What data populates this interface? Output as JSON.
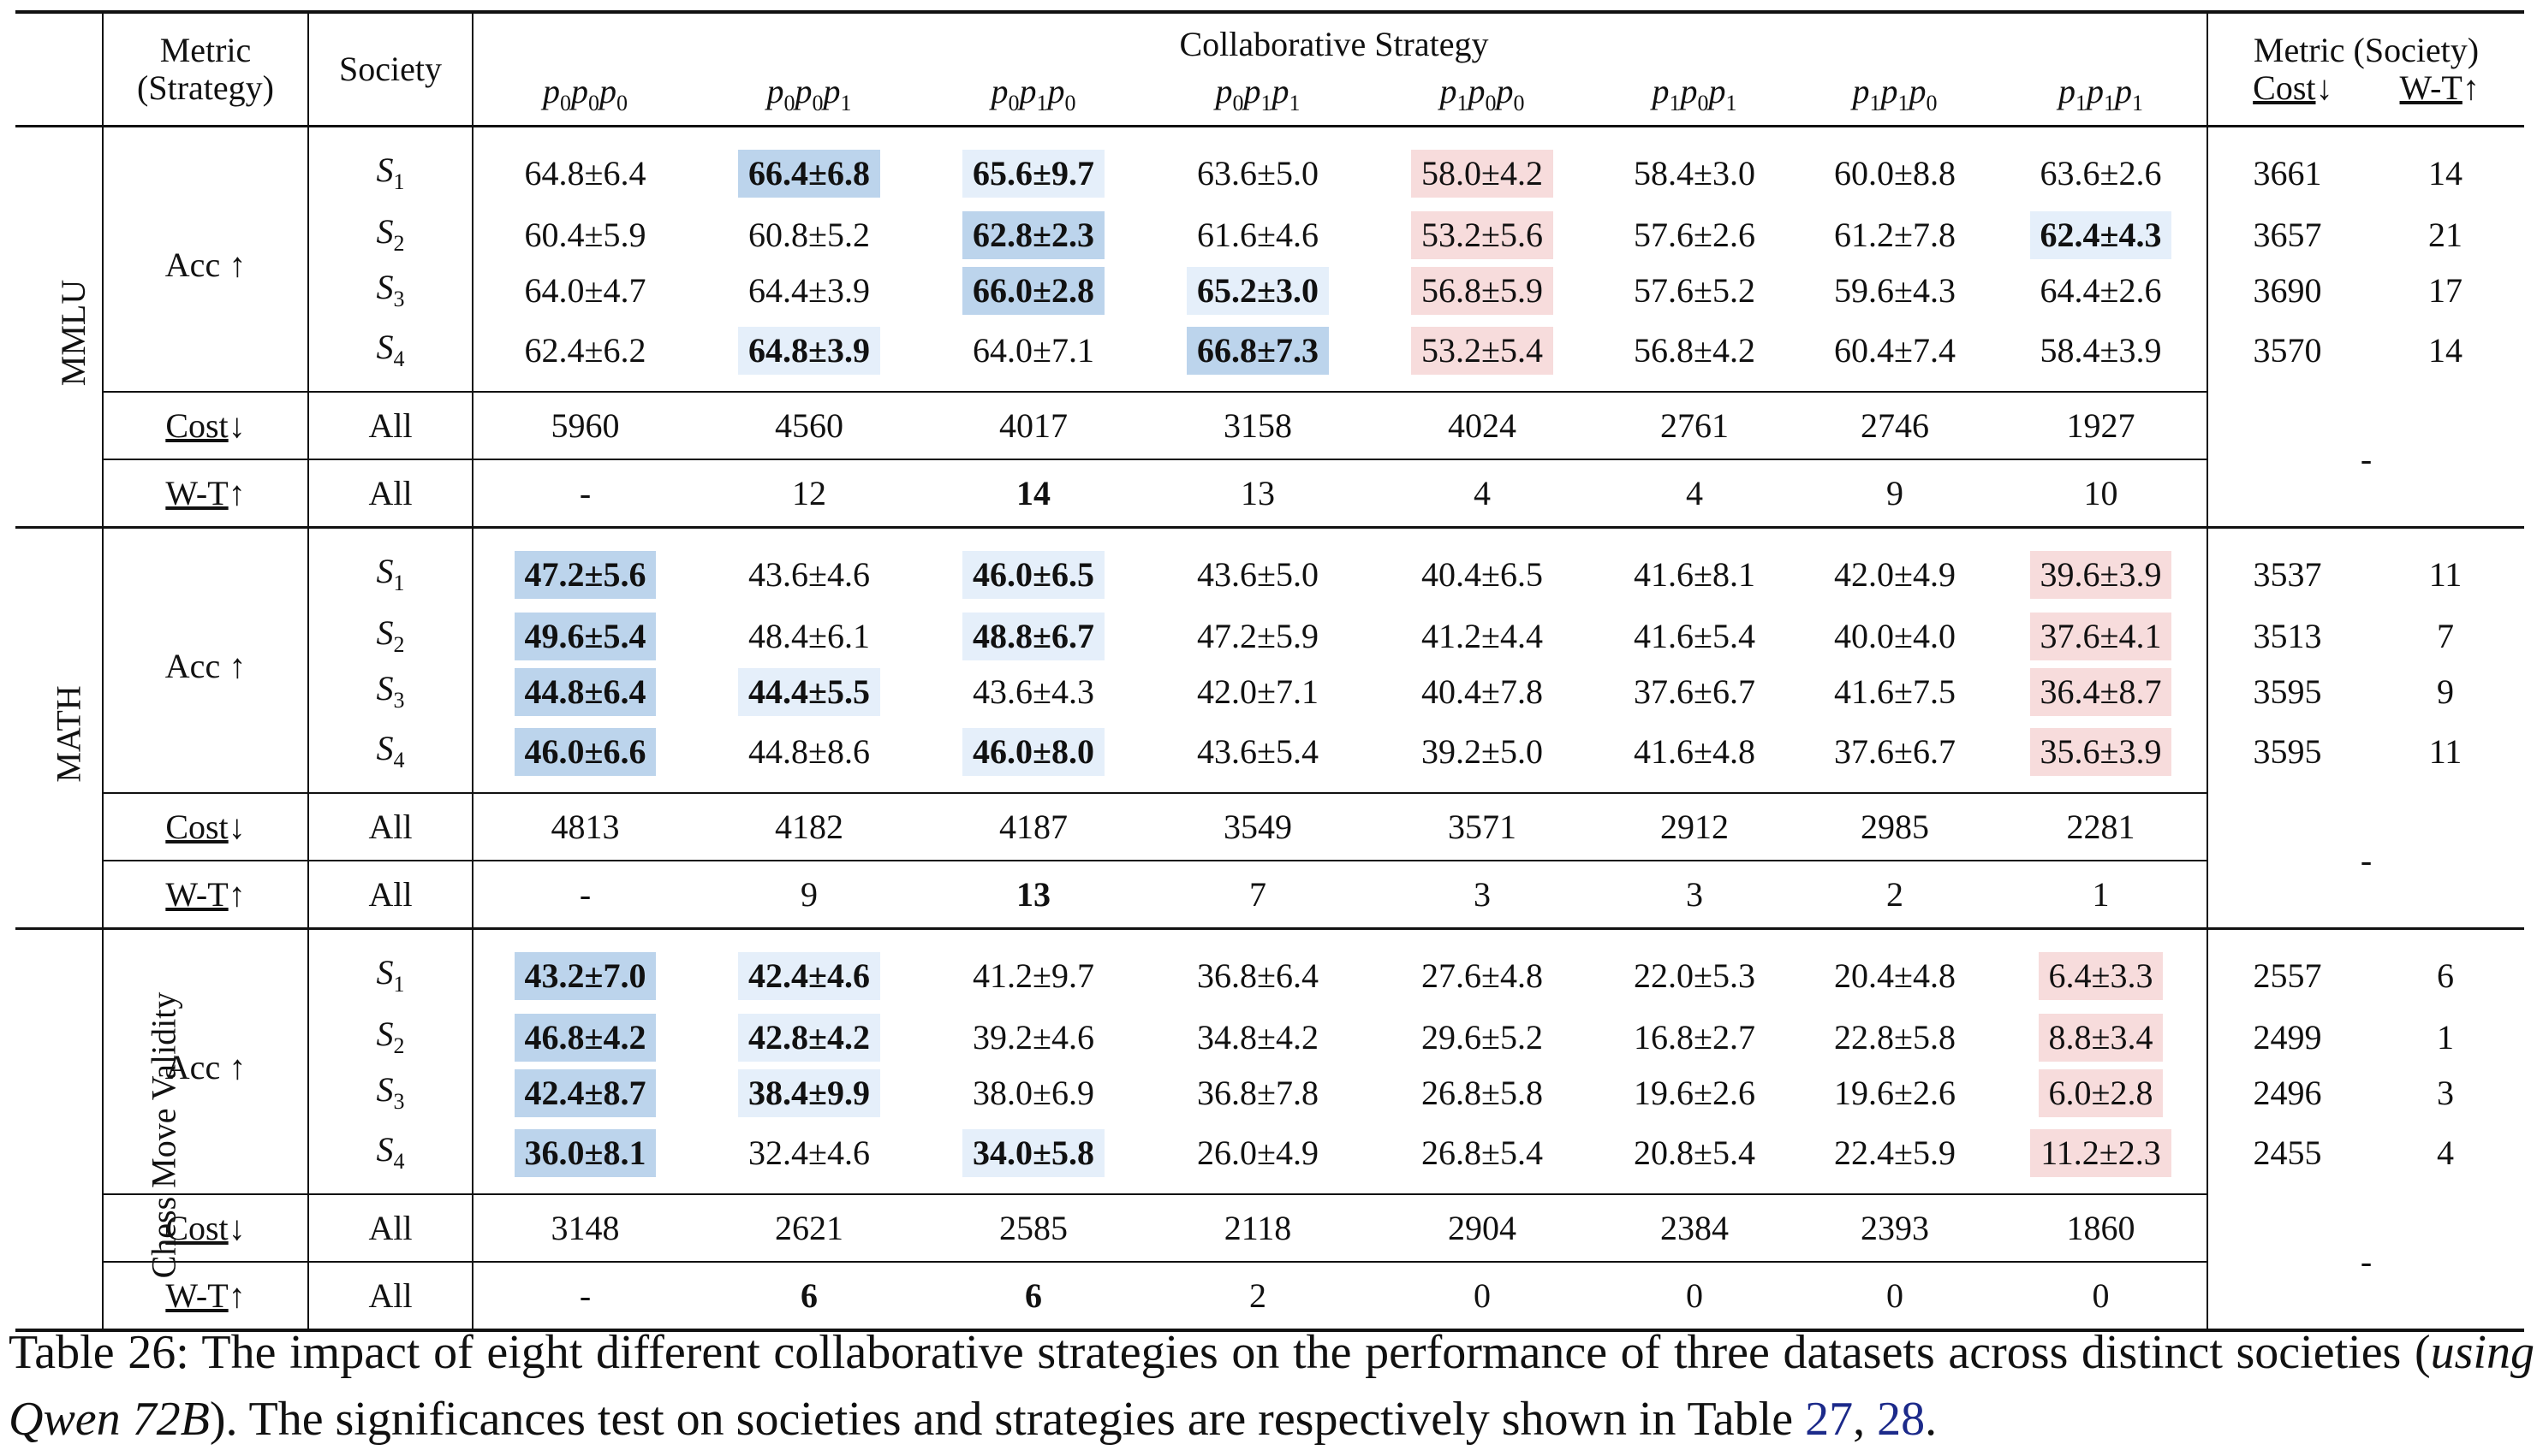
{
  "header": {
    "metric_strategy": [
      "Metric",
      "(Strategy)"
    ],
    "society": "Society",
    "collab_strategy": "Collaborative Strategy",
    "metric_society": "Metric (Society)",
    "cost_label": "Cost",
    "wt_label": "W-T",
    "down_arrow": "↓",
    "up_arrow": "↑",
    "strategies": [
      [
        "p",
        "0",
        "p",
        "0",
        "p",
        "0"
      ],
      [
        "p",
        "0",
        "p",
        "0",
        "p",
        "1"
      ],
      [
        "p",
        "0",
        "p",
        "1",
        "p",
        "0"
      ],
      [
        "p",
        "0",
        "p",
        "1",
        "p",
        "1"
      ],
      [
        "p",
        "1",
        "p",
        "0",
        "p",
        "0"
      ],
      [
        "p",
        "1",
        "p",
        "0",
        "p",
        "1"
      ],
      [
        "p",
        "1",
        "p",
        "1",
        "p",
        "0"
      ],
      [
        "p",
        "1",
        "p",
        "1",
        "p",
        "1"
      ]
    ]
  },
  "labels": {
    "acc": "Acc ↑",
    "cost": "Cost",
    "wt": "W-T",
    "all": "All",
    "dash": "-"
  },
  "datasets": [
    {
      "name": "MMLU",
      "rows": [
        {
          "s": "S",
          "n": "1",
          "cells": [
            {
              "v": "64.8±6.4"
            },
            {
              "v": "66.4±6.8",
              "b": true,
              "h": "dark"
            },
            {
              "v": "65.6±9.7",
              "b": true,
              "h": "light"
            },
            {
              "v": "63.6±5.0"
            },
            {
              "v": "58.0±4.2",
              "h": "red"
            },
            {
              "v": "58.4±3.0"
            },
            {
              "v": "60.0±8.8"
            },
            {
              "v": "63.6±2.6"
            }
          ],
          "cost": "3661",
          "wt": "14"
        },
        {
          "s": "S",
          "n": "2",
          "cells": [
            {
              "v": "60.4±5.9"
            },
            {
              "v": "60.8±5.2"
            },
            {
              "v": "62.8±2.3",
              "b": true,
              "h": "dark"
            },
            {
              "v": "61.6±4.6"
            },
            {
              "v": "53.2±5.6",
              "h": "red"
            },
            {
              "v": "57.6±2.6"
            },
            {
              "v": "61.2±7.8"
            },
            {
              "v": "62.4±4.3",
              "b": true,
              "h": "light"
            }
          ],
          "cost": "3657",
          "wt": "21"
        },
        {
          "s": "S",
          "n": "3",
          "cells": [
            {
              "v": "64.0±4.7"
            },
            {
              "v": "64.4±3.9"
            },
            {
              "v": "66.0±2.8",
              "b": true,
              "h": "dark"
            },
            {
              "v": "65.2±3.0",
              "b": true,
              "h": "light"
            },
            {
              "v": "56.8±5.9",
              "h": "red"
            },
            {
              "v": "57.6±5.2"
            },
            {
              "v": "59.6±4.3"
            },
            {
              "v": "64.4±2.6"
            }
          ],
          "cost": "3690",
          "wt": "17"
        },
        {
          "s": "S",
          "n": "4",
          "cells": [
            {
              "v": "62.4±6.2"
            },
            {
              "v": "64.8±3.9",
              "b": true,
              "h": "light"
            },
            {
              "v": "64.0±7.1"
            },
            {
              "v": "66.8±7.3",
              "b": true,
              "h": "dark"
            },
            {
              "v": "53.2±5.4",
              "h": "red"
            },
            {
              "v": "56.8±4.2"
            },
            {
              "v": "60.4±7.4"
            },
            {
              "v": "58.4±3.9"
            }
          ],
          "cost": "3570",
          "wt": "14"
        }
      ],
      "cost_row": [
        "5960",
        "4560",
        "4017",
        "3158",
        "4024",
        "2761",
        "2746",
        "1927"
      ],
      "wt_row": [
        {
          "v": "-"
        },
        {
          "v": "12"
        },
        {
          "v": "14",
          "b": true
        },
        {
          "v": "13"
        },
        {
          "v": "4"
        },
        {
          "v": "4"
        },
        {
          "v": "9"
        },
        {
          "v": "10"
        }
      ]
    },
    {
      "name": "MATH",
      "rows": [
        {
          "s": "S",
          "n": "1",
          "cells": [
            {
              "v": "47.2±5.6",
              "b": true,
              "h": "dark"
            },
            {
              "v": "43.6±4.6"
            },
            {
              "v": "46.0±6.5",
              "b": true,
              "h": "light"
            },
            {
              "v": "43.6±5.0"
            },
            {
              "v": "40.4±6.5"
            },
            {
              "v": "41.6±8.1"
            },
            {
              "v": "42.0±4.9"
            },
            {
              "v": "39.6±3.9",
              "h": "red"
            }
          ],
          "cost": "3537",
          "wt": "11"
        },
        {
          "s": "S",
          "n": "2",
          "cells": [
            {
              "v": "49.6±5.4",
              "b": true,
              "h": "dark"
            },
            {
              "v": "48.4±6.1"
            },
            {
              "v": "48.8±6.7",
              "b": true,
              "h": "light"
            },
            {
              "v": "47.2±5.9"
            },
            {
              "v": "41.2±4.4"
            },
            {
              "v": "41.6±5.4"
            },
            {
              "v": "40.0±4.0"
            },
            {
              "v": "37.6±4.1",
              "h": "red"
            }
          ],
          "cost": "3513",
          "wt": "7"
        },
        {
          "s": "S",
          "n": "3",
          "cells": [
            {
              "v": "44.8±6.4",
              "b": true,
              "h": "dark"
            },
            {
              "v": "44.4±5.5",
              "b": true,
              "h": "light"
            },
            {
              "v": "43.6±4.3"
            },
            {
              "v": "42.0±7.1"
            },
            {
              "v": "40.4±7.8"
            },
            {
              "v": "37.6±6.7"
            },
            {
              "v": "41.6±7.5"
            },
            {
              "v": "36.4±8.7",
              "h": "red"
            }
          ],
          "cost": "3595",
          "wt": "9"
        },
        {
          "s": "S",
          "n": "4",
          "cells": [
            {
              "v": "46.0±6.6",
              "b": true,
              "h": "dark"
            },
            {
              "v": "44.8±8.6"
            },
            {
              "v": "46.0±8.0",
              "b": true,
              "h": "light"
            },
            {
              "v": "43.6±5.4"
            },
            {
              "v": "39.2±5.0"
            },
            {
              "v": "41.6±4.8"
            },
            {
              "v": "37.6±6.7"
            },
            {
              "v": "35.6±3.9",
              "h": "red"
            }
          ],
          "cost": "3595",
          "wt": "11"
        }
      ],
      "cost_row": [
        "4813",
        "4182",
        "4187",
        "3549",
        "3571",
        "2912",
        "2985",
        "2281"
      ],
      "wt_row": [
        {
          "v": "-"
        },
        {
          "v": "9"
        },
        {
          "v": "13",
          "b": true
        },
        {
          "v": "7"
        },
        {
          "v": "3"
        },
        {
          "v": "3"
        },
        {
          "v": "2"
        },
        {
          "v": "1"
        }
      ]
    },
    {
      "name": "Chess Move Validity",
      "rows": [
        {
          "s": "S",
          "n": "1",
          "cells": [
            {
              "v": "43.2±7.0",
              "b": true,
              "h": "dark"
            },
            {
              "v": "42.4±4.6",
              "b": true,
              "h": "light"
            },
            {
              "v": "41.2±9.7"
            },
            {
              "v": "36.8±6.4"
            },
            {
              "v": "27.6±4.8"
            },
            {
              "v": "22.0±5.3"
            },
            {
              "v": "20.4±4.8"
            },
            {
              "v": "6.4±3.3",
              "h": "red"
            }
          ],
          "cost": "2557",
          "wt": "6"
        },
        {
          "s": "S",
          "n": "2",
          "cells": [
            {
              "v": "46.8±4.2",
              "b": true,
              "h": "dark"
            },
            {
              "v": "42.8±4.2",
              "b": true,
              "h": "light"
            },
            {
              "v": "39.2±4.6"
            },
            {
              "v": "34.8±4.2"
            },
            {
              "v": "29.6±5.2"
            },
            {
              "v": "16.8±2.7"
            },
            {
              "v": "22.8±5.8"
            },
            {
              "v": "8.8±3.4",
              "h": "red"
            }
          ],
          "cost": "2499",
          "wt": "1"
        },
        {
          "s": "S",
          "n": "3",
          "cells": [
            {
              "v": "42.4±8.7",
              "b": true,
              "h": "dark"
            },
            {
              "v": "38.4±9.9",
              "b": true,
              "h": "light"
            },
            {
              "v": "38.0±6.9"
            },
            {
              "v": "36.8±7.8"
            },
            {
              "v": "26.8±5.8"
            },
            {
              "v": "19.6±2.6"
            },
            {
              "v": "19.6±2.6"
            },
            {
              "v": "6.0±2.8",
              "h": "red"
            }
          ],
          "cost": "2496",
          "wt": "3"
        },
        {
          "s": "S",
          "n": "4",
          "cells": [
            {
              "v": "36.0±8.1",
              "b": true,
              "h": "dark"
            },
            {
              "v": "32.4±4.6"
            },
            {
              "v": "34.0±5.8",
              "b": true,
              "h": "light"
            },
            {
              "v": "26.0±4.9"
            },
            {
              "v": "26.8±5.4"
            },
            {
              "v": "20.8±5.4"
            },
            {
              "v": "22.4±5.9"
            },
            {
              "v": "11.2±2.3",
              "h": "red"
            }
          ],
          "cost": "2455",
          "wt": "4"
        }
      ],
      "cost_row": [
        "3148",
        "2621",
        "2585",
        "2118",
        "2904",
        "2384",
        "2393",
        "1860"
      ],
      "wt_row": [
        {
          "v": "-"
        },
        {
          "v": "6",
          "b": true
        },
        {
          "v": "6",
          "b": true
        },
        {
          "v": "2"
        },
        {
          "v": "0"
        },
        {
          "v": "0"
        },
        {
          "v": "0"
        },
        {
          "v": "0"
        }
      ]
    }
  ],
  "caption": {
    "part1": "Table 26: The impact of eight different collaborative strategies on the performance of three datasets across distinct societies (",
    "italic": "using Qwen 72B",
    "part2": "). The significances test on societies and strategies are respectively shown in Table ",
    "ref1": "27",
    "sep": ", ",
    "ref2": "28",
    "end": "."
  },
  "colors": {
    "highlight_dark": "#bcd4ec",
    "highlight_light": "#e5effa",
    "highlight_red": "#f7dcdc",
    "ref_link": "#1c2a8a"
  }
}
